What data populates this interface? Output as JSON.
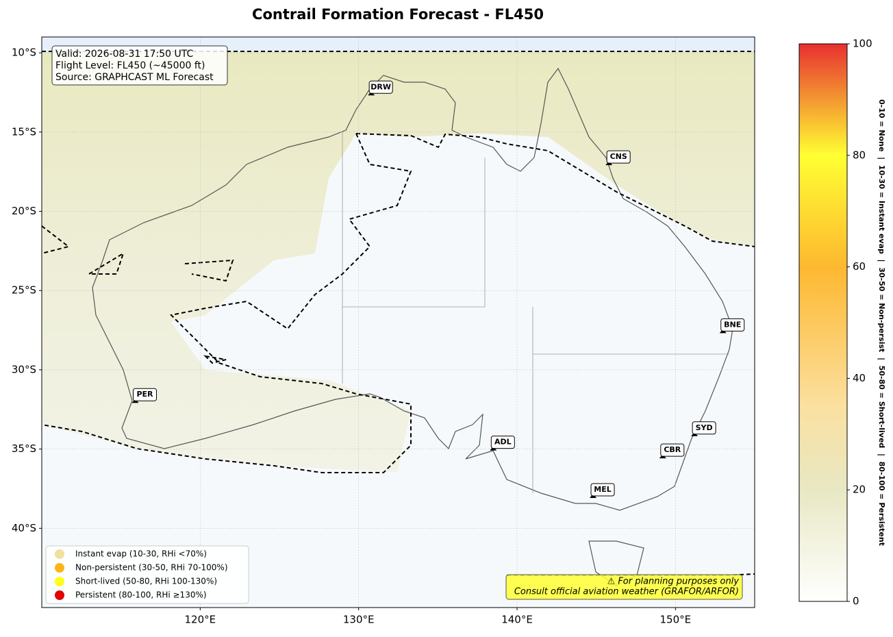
{
  "chart_data": {
    "type": "map",
    "title": "Contrail Formation Forecast - FL450",
    "info": [
      "Valid: 2026-08-31 17:50 UTC",
      "Flight Level: FL450 (~45000 ft)",
      "Source: GRAPHCAST ML Forecast"
    ],
    "xlim": [
      110,
      155
    ],
    "ylim": [
      -45,
      -9
    ],
    "xticks": [
      {
        "value": 120,
        "label": "120°E"
      },
      {
        "value": 130,
        "label": "130°E"
      },
      {
        "value": 140,
        "label": "140°E"
      },
      {
        "value": 150,
        "label": "150°E"
      }
    ],
    "yticks": [
      {
        "value": -10,
        "label": "10°S"
      },
      {
        "value": -15,
        "label": "15°S"
      },
      {
        "value": -20,
        "label": "20°S"
      },
      {
        "value": -25,
        "label": "25°S"
      },
      {
        "value": -30,
        "label": "30°S"
      },
      {
        "value": -35,
        "label": "35°S"
      },
      {
        "value": -40,
        "label": "40°S"
      }
    ],
    "grid": true,
    "airports": [
      {
        "name": "DRW",
        "lon": 130.8,
        "lat": -12.6
      },
      {
        "name": "CNS",
        "lon": 145.8,
        "lat": -17.0
      },
      {
        "name": "BNE",
        "lon": 153.0,
        "lat": -27.6
      },
      {
        "name": "PER",
        "lon": 115.9,
        "lat": -32.0
      },
      {
        "name": "ADL",
        "lon": 138.5,
        "lat": -35.0
      },
      {
        "name": "CBR",
        "lon": 149.2,
        "lat": -35.5
      },
      {
        "name": "SYD",
        "lon": 151.2,
        "lat": -34.1
      },
      {
        "name": "MEL",
        "lon": 144.8,
        "lat": -38.0
      }
    ],
    "legend": [
      {
        "label": "Instant evap (10-30, RHi <70%)",
        "color": "#f0e0a0"
      },
      {
        "label": "Non-persistent (30-50, RHi 70-100%)",
        "color": "#fdb515"
      },
      {
        "label": "Short-lived (50-80, RHi 100-130%)",
        "color": "#ffff1a"
      },
      {
        "label": "Persistent (80-100, RHi ≥130%)",
        "color": "#e50000"
      }
    ],
    "disclaimer": [
      "⚠ For planning purposes only",
      "Consult official aviation weather (GRAFOR/ARFOR)"
    ],
    "colorbar": {
      "lim": [
        0,
        100
      ],
      "ticks": [
        0,
        20,
        40,
        60,
        80,
        100
      ],
      "label": "0-10 = None  |  10-30 = Instant evap  |  30-50 = Non-persist  |  50-80 = Short-lived  |  80-100 = Persistent"
    }
  }
}
